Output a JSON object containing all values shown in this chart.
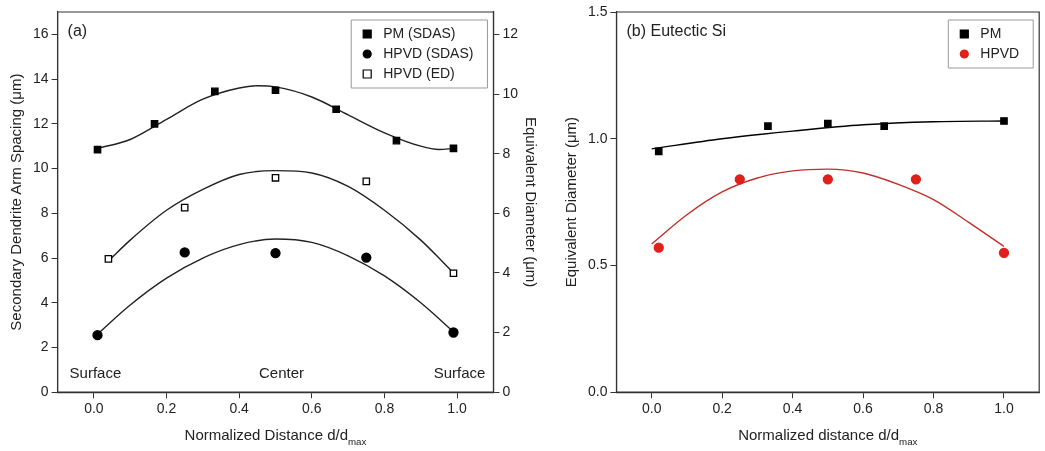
{
  "chart_data": [
    {
      "type": "scatter",
      "title": "(a)",
      "xlabel": "Normalized Distance d/d$_{max}$",
      "ylabel": "Secondary Dendrite Arm Spacing (μm)",
      "y2label": "Equivalent Diameter (μm)",
      "xlim": [
        -0.1,
        1.1
      ],
      "xticks": [
        {
          "value": 0,
          "label": "0.0"
        },
        {
          "value": 0.2,
          "label": "0.2"
        },
        {
          "value": 0.4,
          "label": "0.4"
        },
        {
          "value": 0.6,
          "label": "0.6"
        },
        {
          "value": 0.8,
          "label": "0.8"
        },
        {
          "value": 1,
          "label": "1.0"
        }
      ],
      "ylim": [
        0,
        17
      ],
      "yticks": [
        0,
        2,
        4,
        6,
        8,
        10,
        12,
        14,
        16
      ],
      "y2lim": [
        0,
        12.75
      ],
      "y2ticks": [
        0,
        2,
        4,
        6,
        8,
        10,
        12
      ],
      "grid": false,
      "legend": "top right",
      "annotations": [
        "Surface",
        "Center",
        "Surface"
      ],
      "series": [
        {
          "name": "PM (SDAS)",
          "type": "scatter",
          "marker": "square",
          "color": "#000000",
          "x": [
            0.01,
            0.167,
            0.333,
            0.5,
            0.667,
            0.833,
            0.99
          ],
          "values": [
            10.85,
            12.0,
            13.45,
            13.5,
            12.65,
            11.25,
            10.9
          ]
        },
        {
          "name": "HPVD (SDAS)",
          "type": "scatter",
          "marker": "circle",
          "color": "#000000",
          "x": [
            0.01,
            0.25,
            0.5,
            0.75,
            0.99
          ],
          "values": [
            2.55,
            6.25,
            6.22,
            6.02,
            2.67
          ]
        },
        {
          "name": "HPVD (ED)",
          "type": "scatter",
          "marker": "square",
          "axis": "y2",
          "color": "#000000",
          "x": [
            0.04,
            0.25,
            0.5,
            0.75,
            0.99
          ],
          "values": [
            4.47,
            6.19,
            7.19,
            7.07,
            3.99
          ]
        },
        {
          "type": "line",
          "marker": "none",
          "color": "#222222",
          "x": [
            0.01,
            0.1,
            0.2,
            0.3,
            0.4,
            0.45,
            0.5,
            0.6,
            0.7,
            0.8,
            0.9,
            0.95,
            0.99
          ],
          "values": [
            10.9,
            11.3,
            12.2,
            13.1,
            13.6,
            13.7,
            13.65,
            13.2,
            12.4,
            11.6,
            11.0,
            10.85,
            10.9
          ]
        },
        {
          "type": "line",
          "marker": "none",
          "color": "#222222",
          "x": [
            0.01,
            0.1,
            0.2,
            0.3,
            0.4,
            0.5,
            0.6,
            0.7,
            0.8,
            0.9,
            0.99
          ],
          "values": [
            2.6,
            3.9,
            5.1,
            6.0,
            6.6,
            6.85,
            6.7,
            6.1,
            5.2,
            4.0,
            2.7
          ]
        },
        {
          "type": "line",
          "marker": "none",
          "axis": "y2",
          "color": "#222222",
          "x": [
            0.04,
            0.1,
            0.2,
            0.3,
            0.4,
            0.5,
            0.6,
            0.7,
            0.8,
            0.9,
            0.99
          ],
          "values": [
            4.4,
            5.1,
            6.1,
            6.8,
            7.3,
            7.43,
            7.35,
            6.9,
            6.1,
            5.1,
            4.0
          ]
        }
      ]
    },
    {
      "type": "scatter",
      "title": "(b) Eutectic Si",
      "xlabel": "Normalized distance d/d$_{max}$",
      "ylabel": "Equivalent Diameter (μm)",
      "xlim": [
        -0.1,
        1.1
      ],
      "xticks": [
        {
          "value": 0,
          "label": "0.0"
        },
        {
          "value": 0.2,
          "label": "0.2"
        },
        {
          "value": 0.4,
          "label": "0.4"
        },
        {
          "value": 0.6,
          "label": "0.6"
        },
        {
          "value": 0.8,
          "label": "0.8"
        },
        {
          "value": 1,
          "label": "1.0"
        }
      ],
      "ylim": [
        0,
        1.5
      ],
      "yticks": [
        {
          "value": 0,
          "label": "0.0"
        },
        {
          "value": 0.5,
          "label": "0.5"
        },
        {
          "value": 1,
          "label": "1.0"
        },
        {
          "value": 1.5,
          "label": "1.5"
        }
      ],
      "grid": false,
      "legend": "top right",
      "series": [
        {
          "name": "PM",
          "type": "scatter",
          "marker": "square",
          "color": "#000000",
          "x": [
            0.02,
            0.33,
            0.5,
            0.66,
            1.0
          ],
          "values": [
            0.95,
            1.05,
            1.06,
            1.05,
            1.07
          ]
        },
        {
          "name": "HPVD",
          "type": "scatter",
          "marker": "circle",
          "color": "#e0201b",
          "x": [
            0.02,
            0.25,
            0.5,
            0.75,
            1.0
          ],
          "values": [
            0.57,
            0.84,
            0.84,
            0.84,
            0.55
          ]
        },
        {
          "type": "line",
          "marker": "none",
          "color": "#000000",
          "x": [
            0.0,
            0.2,
            0.4,
            0.6,
            0.8,
            1.0
          ],
          "values": [
            0.96,
            1.0,
            1.03,
            1.055,
            1.067,
            1.07
          ]
        },
        {
          "type": "line",
          "marker": "none",
          "color": "#c0302a",
          "x": [
            0.0,
            0.1,
            0.2,
            0.3,
            0.4,
            0.5,
            0.6,
            0.7,
            0.8,
            0.9,
            1.0
          ],
          "values": [
            0.585,
            0.7,
            0.79,
            0.845,
            0.873,
            0.88,
            0.865,
            0.82,
            0.76,
            0.67,
            0.575
          ]
        }
      ]
    }
  ]
}
